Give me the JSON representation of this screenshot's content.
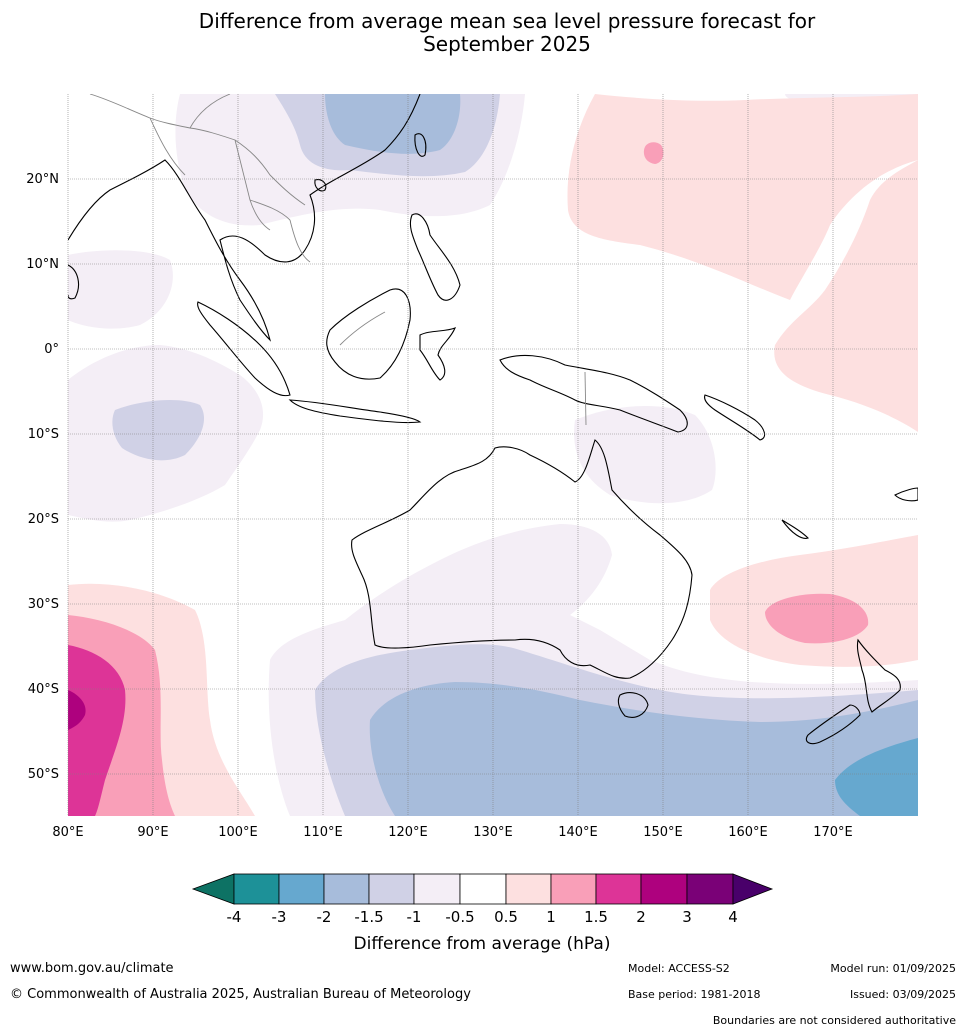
{
  "title_line1": "Difference from average mean sea level pressure forecast for",
  "title_line2": "September 2025",
  "map": {
    "lon_ticks": [
      "80°E",
      "90°E",
      "100°E",
      "110°E",
      "120°E",
      "130°E",
      "140°E",
      "150°E",
      "160°E",
      "170°E"
    ],
    "lat_ticks": [
      "20°N",
      "10°N",
      "0°",
      "10°S",
      "20°S",
      "30°S",
      "40°S",
      "50°S"
    ],
    "colors": {
      "neg4": "#0d7264",
      "neg3": "#1d9198",
      "neg2": "#66a8cf",
      "neg15": "#a7bcdb",
      "neg1": "#d0d1e6",
      "neg05": "#f4eef6",
      "zero": "#ffffff",
      "pos05": "#fde0e0",
      "pos1": "#f99fb8",
      "pos15": "#dd3497",
      "pos2": "#ae017e",
      "pos3": "#7a0177",
      "pos4": "#49006a"
    }
  },
  "colorbar": {
    "ticks": [
      "-4",
      "-3",
      "-2",
      "-1.5",
      "-1",
      "-0.5",
      "0.5",
      "1",
      "1.5",
      "2",
      "3",
      "4"
    ],
    "label": "Difference from average (hPa)"
  },
  "footer": {
    "website": "www.bom.gov.au/climate",
    "copyright": "© Commonwealth of Australia 2025, Australian Bureau of Meteorology",
    "model": "Model: ACCESS-S2",
    "base_period": "Base period: 1981-2018",
    "model_run": "Model run: 01/09/2025",
    "issued": "Issued: 03/09/2025",
    "disclaimer": "Boundaries are not considered authoritative"
  }
}
